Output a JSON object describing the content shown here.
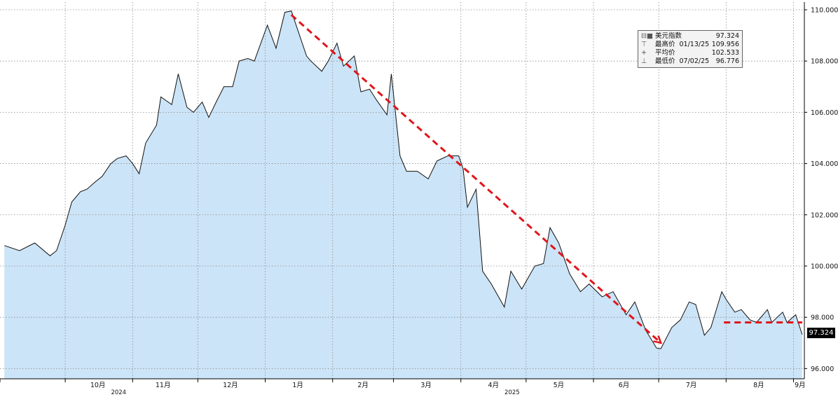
{
  "chart_data": {
    "type": "area",
    "title": "",
    "xlabel": "",
    "ylabel": "",
    "ylim": [
      95.6,
      110.3
    ],
    "y_ticks": [
      "96.000",
      "98.000",
      "100.000",
      "102.000",
      "104.000",
      "106.000",
      "108.000",
      "110.000"
    ],
    "y_tick_values": [
      96,
      98,
      100,
      102,
      104,
      106,
      108,
      110
    ],
    "x_month_labels": [
      "10月",
      "11月",
      "12月",
      "1月",
      "2月",
      "3月",
      "4月",
      "5月",
      "6月",
      "7月",
      "8月",
      "9月"
    ],
    "x_year_labels": [
      "2024",
      "2025"
    ],
    "grid": true,
    "fill_color": "#cce4f7",
    "line_color": "#111111",
    "trend_color": "#e0161b",
    "series": [
      {
        "name": "美元指数",
        "x": [
          "2024-09-03",
          "2024-09-10",
          "2024-09-17",
          "2024-09-24",
          "2024-09-27",
          "2024-10-01",
          "2024-10-04",
          "2024-10-08",
          "2024-10-11",
          "2024-10-15",
          "2024-10-18",
          "2024-10-22",
          "2024-10-25",
          "2024-10-29",
          "2024-11-01",
          "2024-11-04",
          "2024-11-07",
          "2024-11-12",
          "2024-11-14",
          "2024-11-19",
          "2024-11-22",
          "2024-11-26",
          "2024-11-29",
          "2024-12-03",
          "2024-12-06",
          "2024-12-10",
          "2024-12-13",
          "2024-12-17",
          "2024-12-20",
          "2024-12-24",
          "2024-12-27",
          "2025-01-02",
          "2025-01-06",
          "2025-01-10",
          "2025-01-13",
          "2025-01-16",
          "2025-01-20",
          "2025-01-22",
          "2025-01-27",
          "2025-01-30",
          "2025-02-03",
          "2025-02-06",
          "2025-02-11",
          "2025-02-14",
          "2025-02-18",
          "2025-02-21",
          "2025-02-26",
          "2025-02-28",
          "2025-03-04",
          "2025-03-07",
          "2025-03-12",
          "2025-03-17",
          "2025-03-21",
          "2025-03-26",
          "2025-03-31",
          "2025-04-02",
          "2025-04-04",
          "2025-04-08",
          "2025-04-11",
          "2025-04-15",
          "2025-04-21",
          "2025-04-24",
          "2025-04-29",
          "2025-05-05",
          "2025-05-09",
          "2025-05-12",
          "2025-05-16",
          "2025-05-21",
          "2025-05-26",
          "2025-05-30",
          "2025-06-05",
          "2025-06-10",
          "2025-06-16",
          "2025-06-20",
          "2025-06-25",
          "2025-06-30",
          "2025-07-02",
          "2025-07-07",
          "2025-07-11",
          "2025-07-15",
          "2025-07-18",
          "2025-07-22",
          "2025-07-25",
          "2025-07-30",
          "2025-08-01",
          "2025-08-05",
          "2025-08-08",
          "2025-08-12",
          "2025-08-15",
          "2025-08-20",
          "2025-08-22",
          "2025-08-27",
          "2025-08-29",
          "2025-09-02",
          "2025-09-05"
        ],
        "values": [
          100.8,
          100.6,
          100.9,
          100.4,
          100.6,
          101.6,
          102.5,
          102.9,
          103.0,
          103.3,
          103.5,
          104.0,
          104.2,
          104.3,
          104.0,
          103.6,
          104.8,
          105.5,
          106.6,
          106.3,
          107.5,
          106.2,
          106.0,
          106.4,
          105.8,
          106.5,
          107.0,
          107.0,
          108.0,
          108.1,
          108.0,
          109.4,
          108.5,
          109.9,
          109.956,
          109.2,
          108.2,
          108.0,
          107.6,
          108.0,
          108.7,
          107.8,
          108.2,
          106.8,
          106.9,
          106.5,
          105.9,
          107.5,
          104.3,
          103.7,
          103.7,
          103.4,
          104.1,
          104.3,
          104.3,
          103.8,
          102.3,
          103.0,
          99.8,
          99.3,
          98.4,
          99.8,
          99.1,
          100.0,
          100.1,
          101.5,
          100.9,
          99.7,
          99.0,
          99.3,
          98.8,
          99.0,
          98.1,
          98.6,
          97.5,
          96.8,
          96.776,
          97.6,
          97.9,
          98.6,
          98.5,
          97.3,
          97.6,
          99.0,
          98.7,
          98.2,
          98.3,
          97.9,
          97.8,
          98.3,
          97.8,
          98.2,
          97.8,
          98.1,
          97.324
        ]
      }
    ],
    "annotations": [
      {
        "type": "trend-arrow",
        "from_x": "2025-01-13",
        "from_y": 109.8,
        "to_x": "2025-07-02",
        "to_y": 97.0,
        "color": "#e0161b",
        "style": "dashed"
      },
      {
        "type": "horizontal-line",
        "from_x": "2025-07-31",
        "to_x": "2025-09-05",
        "y": 97.8,
        "color": "#e0161b",
        "style": "dashed"
      }
    ]
  },
  "legend": {
    "title": {
      "label": "美元指数",
      "value": "97.324"
    },
    "rows": [
      {
        "symbol": "⊤",
        "label": "最高价",
        "date": "01/13/25",
        "value": "109.956"
      },
      {
        "symbol": "+",
        "label": "平均价",
        "date": "",
        "value": "102.533"
      },
      {
        "symbol": "⊥",
        "label": "最低价",
        "date": "07/02/25",
        "value": "96.776"
      }
    ]
  },
  "last_value_label": "97.324"
}
